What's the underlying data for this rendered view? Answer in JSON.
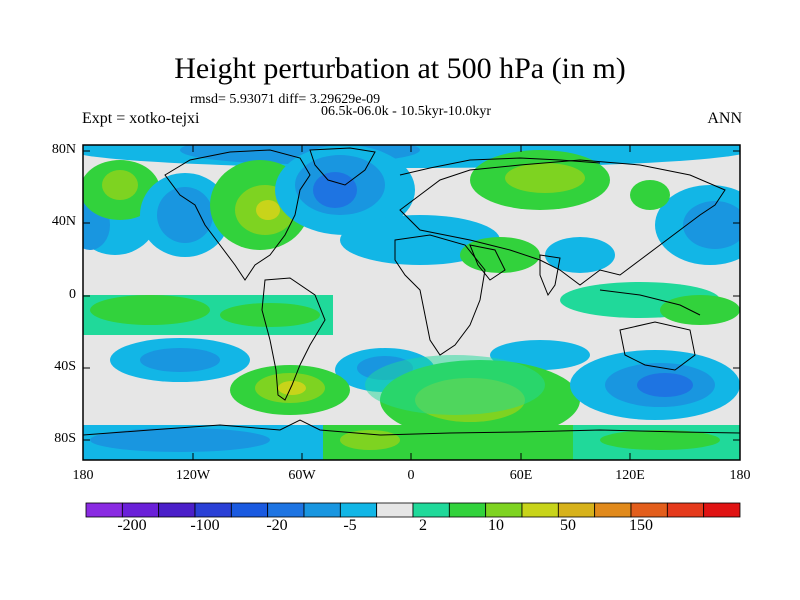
{
  "title": "Height perturbation at 500 hPa (in m)",
  "stats": "rmsd= 5.93071 diff= 3.29629e-09",
  "experiment": "Expt = xotko-tejxi",
  "period": "06.5k-06.0k - 10.5kyr-10.0kyr",
  "season": "ANN",
  "lat_ticks": [
    "80N",
    "40N",
    "0",
    "40S",
    "80S"
  ],
  "lon_ticks": [
    "180",
    "120W",
    "60W",
    "0",
    "60E",
    "120E",
    "180"
  ],
  "colorbar": {
    "labels": [
      "-200",
      "-100",
      "-20",
      "-5",
      "2",
      "10",
      "50",
      "150"
    ],
    "colors": [
      "#8a2be2",
      "#6a20d8",
      "#4b1fc9",
      "#2a40d6",
      "#1a5ae0",
      "#1e74e2",
      "#1996e0",
      "#12b6e6",
      "#e6e6e6",
      "#20d99a",
      "#32d23c",
      "#7ed321",
      "#c8d41a",
      "#d7b21b",
      "#e18a1c",
      "#e35e1c",
      "#e53a1c",
      "#e01313"
    ]
  },
  "field_colors": {
    "neutral": "#e6e6e6",
    "weak_pos": "#20d99a",
    "pos": "#32d23c",
    "pos2": "#7ed321",
    "pos3": "#c8d41a",
    "weak_neg": "#12b6e6",
    "neg": "#1996e0",
    "neg2": "#1e74e2",
    "neg3": "#1a5ae0"
  }
}
